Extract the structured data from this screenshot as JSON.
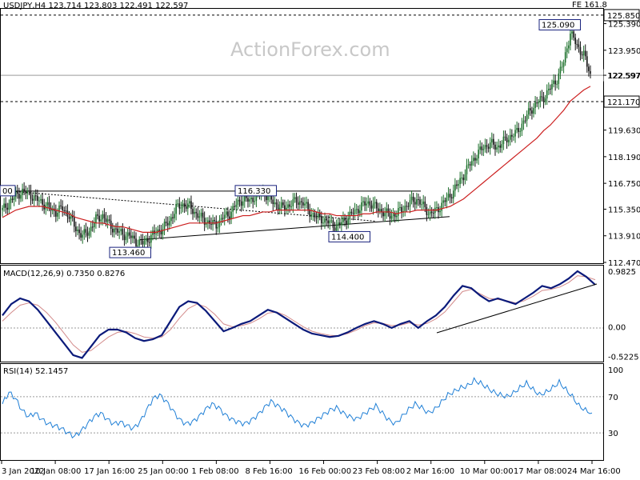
{
  "header": {
    "symbol_line": "USDJPY,H4  123.714 123.803 122.491 122.597",
    "fe_label": "FE 161.8"
  },
  "watermark": "ActionForex.com",
  "colors": {
    "up": "#1b6f2a",
    "down": "#111111",
    "ema": "#cc1f1f",
    "macd": "#0b1a7a",
    "signal": "#d38b8b",
    "rsi": "#1f7fd6",
    "grid": "#9a9a9a",
    "label_border": "#1a237e"
  },
  "chart_data": [
    {
      "type": "candlestick",
      "title": "USDJPY,H4",
      "ohlc_last": {
        "open": 123.714,
        "high": 123.803,
        "low": 122.491,
        "close": 122.597
      },
      "y_ticks": [
        "125.390",
        "123.950",
        "122.597",
        "119.630",
        "118.190",
        "116.750",
        "115.350",
        "113.910",
        "112.470"
      ],
      "ylim": [
        112.47,
        126.15
      ],
      "price_levels": [
        {
          "label": "125.850",
          "value": 125.85,
          "style": "dashed",
          "boxed": true
        },
        {
          "label": "121.170",
          "value": 121.17,
          "style": "dashed",
          "boxed": true
        },
        {
          "label": "122.597",
          "value": 122.597,
          "style": "solid-thin",
          "boxed": true
        }
      ],
      "annotations": [
        {
          "label": "125.090",
          "value": 125.09
        },
        {
          "label": "116.330",
          "value": 116.33
        },
        {
          "label": "114.400",
          "value": 114.4
        },
        {
          "label": "113.460",
          "value": 113.46
        },
        {
          "label": "00",
          "value": 116.33
        }
      ],
      "ema_series_name": "",
      "close_path": [
        115.3,
        115.7,
        116.1,
        116.3,
        116.2,
        115.9,
        115.7,
        115.4,
        115.2,
        115.4,
        115.0,
        114.3,
        113.9,
        114.2,
        114.8,
        115.0,
        114.5,
        114.2,
        114.0,
        113.9,
        113.6,
        113.5,
        113.8,
        114.1,
        114.3,
        114.7,
        115.4,
        115.6,
        115.5,
        115.1,
        114.8,
        114.6,
        114.5,
        114.9,
        115.1,
        115.6,
        115.9,
        115.8,
        116.1,
        116.3,
        115.9,
        115.6,
        115.4,
        115.6,
        115.8,
        115.7,
        115.2,
        114.9,
        114.8,
        114.6,
        114.4,
        114.7,
        115.0,
        115.3,
        115.6,
        115.7,
        115.4,
        115.2,
        115.0,
        115.1,
        115.4,
        115.7,
        115.9,
        115.5,
        115.1,
        115.3,
        115.7,
        116.1,
        116.6,
        117.2,
        117.8,
        118.3,
        118.7,
        118.9,
        118.7,
        119.0,
        119.3,
        119.5,
        120.1,
        120.7,
        121.1,
        121.4,
        121.9,
        122.4,
        123.3,
        124.9,
        124.2,
        123.7,
        122.6
      ],
      "ema_path": [
        114.9,
        115.1,
        115.3,
        115.4,
        115.5,
        115.5,
        115.5,
        115.4,
        115.3,
        115.2,
        115.1,
        114.9,
        114.8,
        114.7,
        114.6,
        114.6,
        114.5,
        114.4,
        114.4,
        114.3,
        114.2,
        114.1,
        114.1,
        114.1,
        114.2,
        114.3,
        114.4,
        114.5,
        114.6,
        114.6,
        114.6,
        114.6,
        114.6,
        114.7,
        114.8,
        114.9,
        115.0,
        115.0,
        115.1,
        115.2,
        115.2,
        115.3,
        115.3,
        115.3,
        115.3,
        115.3,
        115.3,
        115.2,
        115.1,
        115.1,
        115.0,
        115.0,
        115.0,
        115.0,
        115.1,
        115.1,
        115.2,
        115.2,
        115.2,
        115.1,
        115.2,
        115.2,
        115.3,
        115.3,
        115.3,
        115.3,
        115.4,
        115.5,
        115.7,
        115.9,
        116.2,
        116.5,
        116.8,
        117.1,
        117.4,
        117.7,
        118.0,
        118.3,
        118.6,
        118.9,
        119.2,
        119.6,
        119.9,
        120.3,
        120.7,
        121.2,
        121.5,
        121.8,
        122.0
      ]
    },
    {
      "type": "line",
      "title": "MACD(12,26,9) 0.7350 0.8276",
      "y_ticks": [
        "0.9825",
        "0.00",
        "-0.5225"
      ],
      "ylim": [
        -0.6,
        1.05
      ],
      "series": [
        {
          "values": [
            0.2,
            0.4,
            0.5,
            0.45,
            0.3,
            0.1,
            -0.1,
            -0.3,
            -0.5,
            -0.55,
            -0.35,
            -0.15,
            -0.05,
            -0.05,
            -0.1,
            -0.2,
            -0.25,
            -0.22,
            -0.15,
            0.1,
            0.35,
            0.45,
            0.42,
            0.28,
            0.1,
            -0.08,
            -0.02,
            0.05,
            0.1,
            0.2,
            0.3,
            0.25,
            0.15,
            0.05,
            -0.05,
            -0.12,
            -0.15,
            -0.18,
            -0.16,
            -0.1,
            -0.02,
            0.05,
            0.1,
            0.05,
            -0.02,
            0.05,
            0.1,
            -0.02,
            0.1,
            0.2,
            0.35,
            0.55,
            0.72,
            0.68,
            0.55,
            0.45,
            0.5,
            0.45,
            0.4,
            0.5,
            0.6,
            0.72,
            0.68,
            0.75,
            0.85,
            0.98,
            0.88,
            0.74
          ]
        },
        {
          "values": [
            0.1,
            0.25,
            0.38,
            0.42,
            0.38,
            0.25,
            0.08,
            -0.12,
            -0.32,
            -0.45,
            -0.42,
            -0.3,
            -0.18,
            -0.1,
            -0.08,
            -0.12,
            -0.18,
            -0.2,
            -0.18,
            -0.05,
            0.15,
            0.32,
            0.4,
            0.35,
            0.22,
            0.05,
            0.0,
            0.02,
            0.06,
            0.14,
            0.24,
            0.26,
            0.2,
            0.1,
            0.0,
            -0.08,
            -0.12,
            -0.15,
            -0.16,
            -0.12,
            -0.06,
            0.02,
            0.07,
            0.06,
            0.02,
            0.03,
            0.07,
            0.03,
            0.06,
            0.14,
            0.26,
            0.44,
            0.62,
            0.66,
            0.58,
            0.5,
            0.48,
            0.46,
            0.42,
            0.46,
            0.54,
            0.64,
            0.66,
            0.7,
            0.78,
            0.9,
            0.88,
            0.83
          ]
        }
      ]
    },
    {
      "type": "line",
      "title": "RSI(14) 52.1457",
      "y_ticks": [
        "100",
        "70",
        "30"
      ],
      "ylim": [
        0,
        100
      ],
      "levels": [
        70,
        30
      ],
      "series": [
        {
          "values": [
            62,
            75,
            68,
            55,
            48,
            52,
            45,
            40,
            38,
            35,
            30,
            26,
            32,
            40,
            48,
            52,
            45,
            40,
            42,
            38,
            35,
            42,
            55,
            68,
            72,
            65,
            55,
            45,
            40,
            42,
            48,
            56,
            62,
            58,
            50,
            45,
            42,
            40,
            44,
            50,
            58,
            65,
            60,
            55,
            48,
            42,
            38,
            40,
            45,
            50,
            55,
            58,
            52,
            48,
            45,
            50,
            55,
            60,
            52,
            44,
            40,
            48,
            56,
            62,
            58,
            52,
            56,
            64,
            72,
            76,
            80,
            82,
            88,
            85,
            80,
            75,
            72,
            70,
            74,
            80,
            85,
            78,
            72,
            75,
            80,
            86,
            78,
            70,
            60,
            55,
            52
          ]
        }
      ]
    }
  ],
  "x_axis": {
    "tick_labels": [
      "3 Jan 2022",
      "10 Jan 08:00",
      "17 Jan 16:00",
      "25 Jan 00:00",
      "1 Feb 08:00",
      "8 Feb 16:00",
      "16 Feb 00:00",
      "23 Feb 08:00",
      "2 Mar 16:00",
      "10 Mar 00:00",
      "17 Mar 08:00",
      "24 Mar 16:00"
    ]
  }
}
